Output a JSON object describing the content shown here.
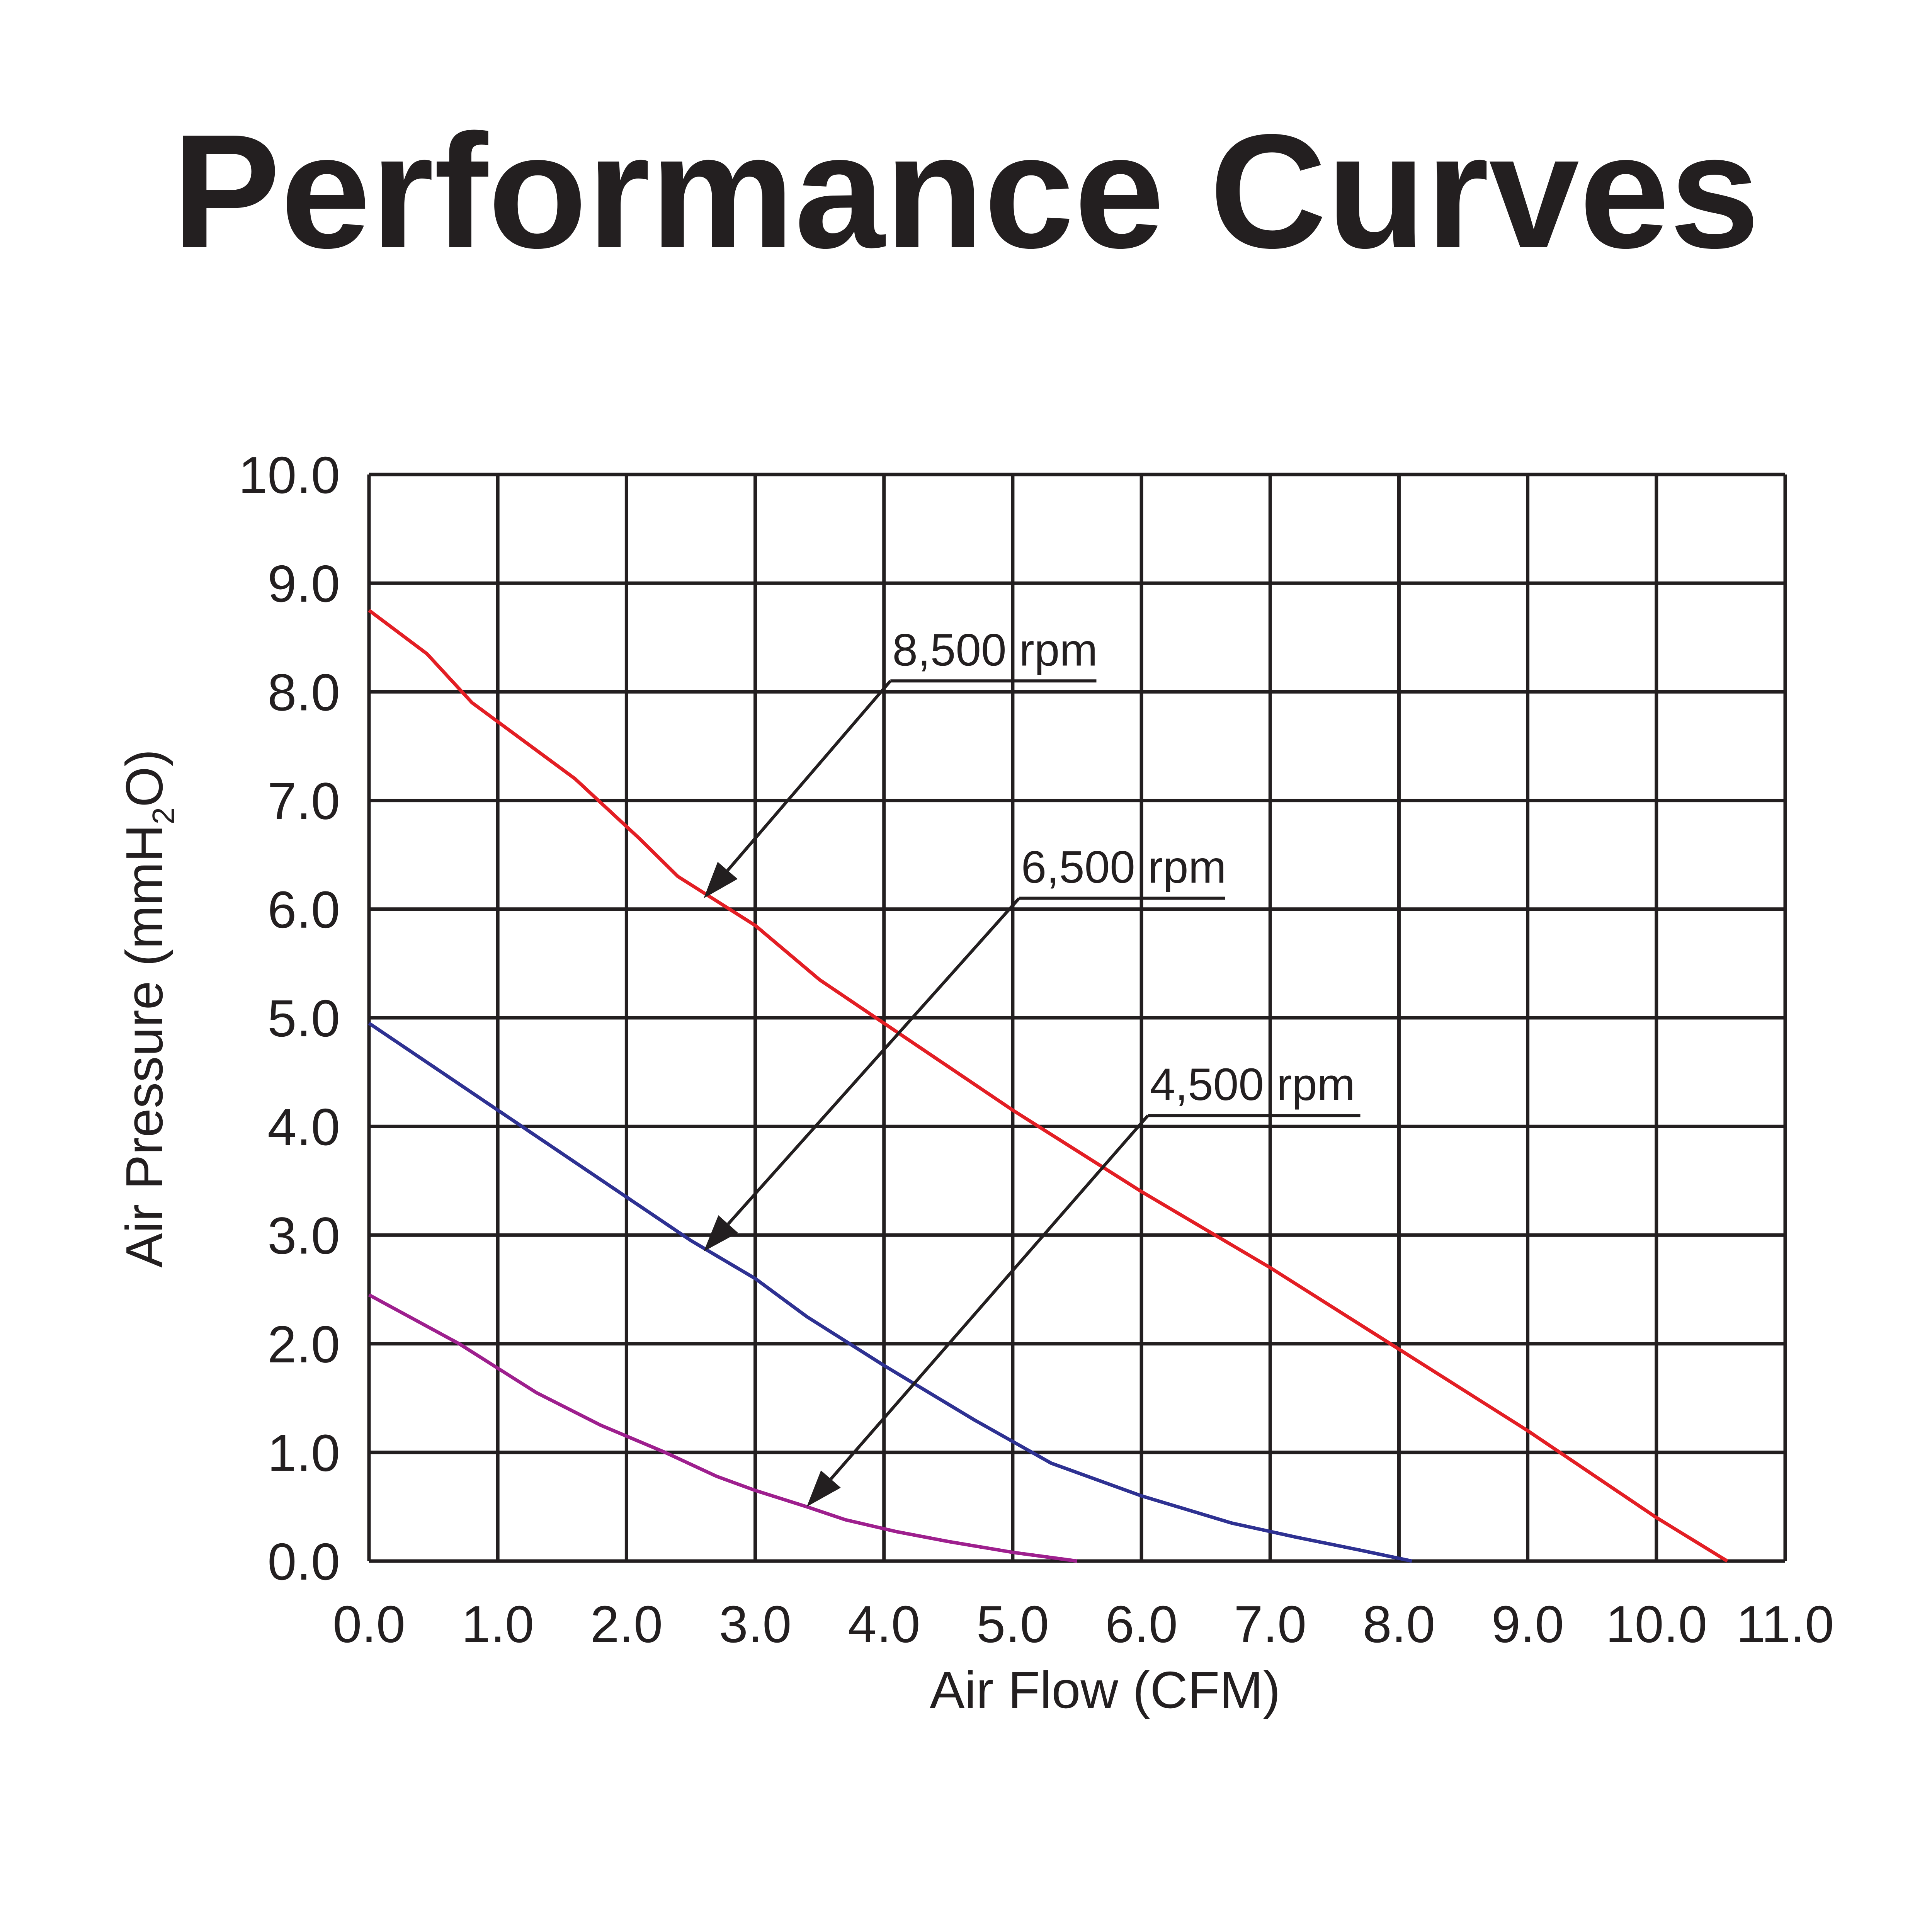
{
  "chart_data": {
    "type": "line",
    "title": "Performance Curves",
    "xlabel": "Air Flow (CFM)",
    "ylabel": {
      "prefix": "Air Pressure (mmH",
      "subscript": "2",
      "suffix": "O)"
    },
    "xlim": [
      0,
      11
    ],
    "ylim": [
      0,
      10
    ],
    "x_ticks": [
      "0.0",
      "1.0",
      "2.0",
      "3.0",
      "4.0",
      "5.0",
      "6.0",
      "7.0",
      "8.0",
      "9.0",
      "10.0",
      "11.0"
    ],
    "y_ticks": [
      "0.0",
      "1.0",
      "2.0",
      "3.0",
      "4.0",
      "5.0",
      "6.0",
      "7.0",
      "8.0",
      "9.0",
      "10.0"
    ],
    "grid": true,
    "series": [
      {
        "name": "8,500 rpm",
        "color": "#e31e24",
        "x": [
          0.0,
          0.45,
          0.8,
          1.6,
          2.1,
          2.4,
          3.0,
          3.5,
          4.0,
          4.5,
          5.0,
          6.0,
          7.0,
          8.0,
          9.0,
          10.0,
          10.55
        ],
        "y": [
          8.75,
          8.35,
          7.9,
          7.2,
          6.65,
          6.3,
          5.85,
          5.35,
          4.95,
          4.55,
          4.15,
          3.4,
          2.7,
          1.95,
          1.2,
          0.4,
          0.0
        ]
      },
      {
        "name": "6,500 rpm",
        "color": "#2e3192",
        "x": [
          0.0,
          0.5,
          1.0,
          2.0,
          2.5,
          3.0,
          3.4,
          4.0,
          4.7,
          5.3,
          6.0,
          6.7,
          7.2,
          7.7,
          8.1
        ],
        "y": [
          4.95,
          4.55,
          4.15,
          3.35,
          2.95,
          2.6,
          2.25,
          1.8,
          1.3,
          0.9,
          0.6,
          0.35,
          0.22,
          0.1,
          0.0
        ]
      },
      {
        "name": "4,500 rpm",
        "color": "#9e1f8e",
        "x": [
          0.0,
          0.7,
          1.3,
          1.8,
          2.3,
          2.7,
          3.0,
          3.4,
          3.7,
          4.1,
          4.5,
          5.0,
          5.5
        ],
        "y": [
          2.45,
          2.0,
          1.55,
          1.25,
          1.0,
          0.78,
          0.65,
          0.5,
          0.38,
          0.27,
          0.18,
          0.08,
          0.0
        ]
      }
    ],
    "annotations": [
      {
        "text": "8,500 rpm",
        "label_x": 4.05,
        "label_y": 8.1,
        "line_end_x": 5.65,
        "arrow_x": 2.6,
        "arrow_y": 6.1
      },
      {
        "text": "6,500 rpm",
        "label_x": 5.05,
        "label_y": 6.1,
        "line_end_x": 6.65,
        "arrow_x": 2.6,
        "arrow_y": 2.85
      },
      {
        "text": "4,500 rpm",
        "label_x": 6.05,
        "label_y": 4.1,
        "line_end_x": 7.7,
        "arrow_x": 3.4,
        "arrow_y": 0.5
      }
    ]
  }
}
